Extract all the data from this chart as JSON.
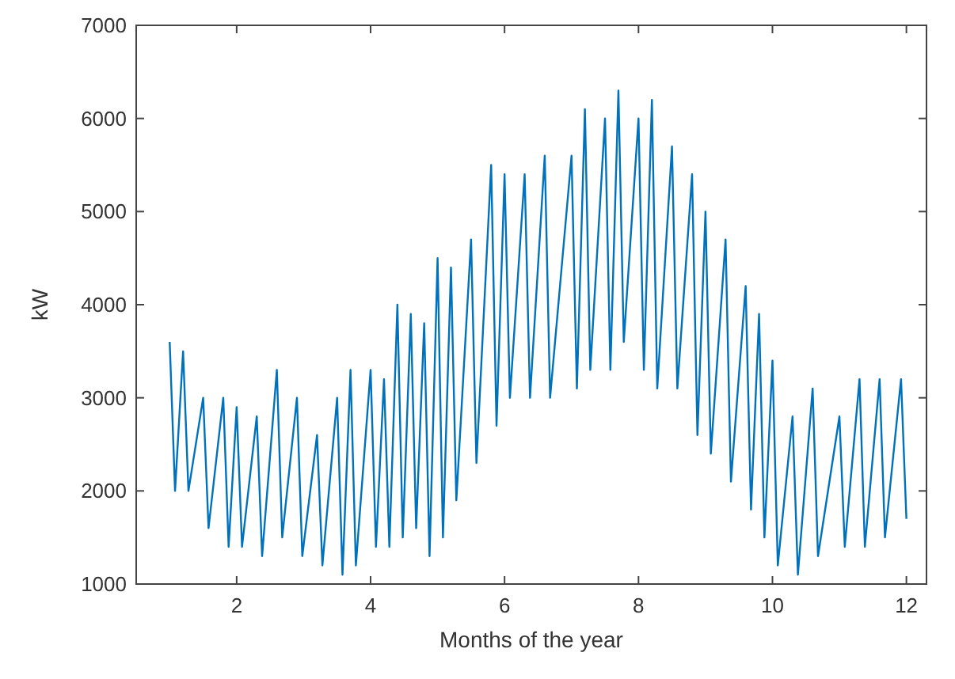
{
  "chart_data": {
    "type": "line",
    "xlabel": "Months of the year",
    "ylabel": "kW",
    "xlim": [
      0.5,
      12.3
    ],
    "ylim": [
      1000,
      7000
    ],
    "xticks": [
      2,
      4,
      6,
      8,
      10,
      12
    ],
    "yticks": [
      1000,
      2000,
      3000,
      4000,
      5000,
      6000,
      7000
    ],
    "grid": false,
    "marker": "none",
    "line_style": "solid",
    "series": [
      {
        "color": "#0072bd",
        "x": [
          1.0,
          1.08,
          1.2,
          1.28,
          1.5,
          1.58,
          1.8,
          1.88,
          2.0,
          2.08,
          2.3,
          2.38,
          2.6,
          2.68,
          2.9,
          2.98,
          3.2,
          3.28,
          3.5,
          3.58,
          3.7,
          3.78,
          4.0,
          4.08,
          4.2,
          4.28,
          4.4,
          4.48,
          4.6,
          4.68,
          4.8,
          4.88,
          5.0,
          5.08,
          5.2,
          5.28,
          5.5,
          5.58,
          5.8,
          5.88,
          6.0,
          6.08,
          6.3,
          6.38,
          6.6,
          6.68,
          7.0,
          7.08,
          7.2,
          7.28,
          7.5,
          7.58,
          7.7,
          7.78,
          8.0,
          8.08,
          8.2,
          8.28,
          8.5,
          8.58,
          8.8,
          8.88,
          9.0,
          9.08,
          9.3,
          9.38,
          9.6,
          9.68,
          9.8,
          9.88,
          10.0,
          10.08,
          10.3,
          10.38,
          10.6,
          10.68,
          11.0,
          11.08,
          11.3,
          11.38,
          11.6,
          11.68,
          11.92,
          12.0
        ],
        "values": [
          3600,
          2000,
          3500,
          2000,
          3000,
          1600,
          3000,
          1400,
          2900,
          1400,
          2800,
          1300,
          3300,
          1500,
          3000,
          1300,
          2600,
          1200,
          3000,
          1100,
          3300,
          1200,
          3300,
          1400,
          3200,
          1400,
          4000,
          1500,
          3900,
          1600,
          3800,
          1300,
          4500,
          1500,
          4400,
          1900,
          4700,
          2300,
          5500,
          2700,
          5400,
          3000,
          5400,
          3000,
          5600,
          3000,
          5600,
          3100,
          6100,
          3300,
          6000,
          3300,
          6300,
          3600,
          6000,
          3300,
          6200,
          3100,
          5700,
          3100,
          5400,
          2600,
          5000,
          2400,
          4700,
          2100,
          4200,
          1800,
          3900,
          1500,
          3400,
          1200,
          2800,
          1100,
          3100,
          1300,
          2800,
          1400,
          3200,
          1400,
          3200,
          1500,
          3200,
          1700
        ]
      }
    ]
  }
}
